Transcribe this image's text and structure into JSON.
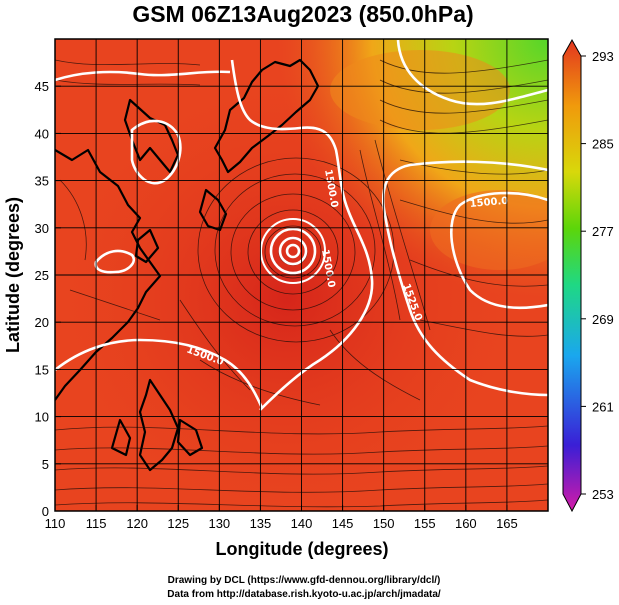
{
  "title": "GSM 06Z13Aug2023 (850.0hPa)",
  "xlabel": "Longitude (degrees)",
  "ylabel": "Latitude  (degrees)",
  "credits": [
    "Drawing by DCL (https://www.gfd-dennou.org/library/dcl/)",
    "Data from http://database.rish.kyoto-u.ac.jp/arch/jmadata/"
  ],
  "chart_data": {
    "type": "heatmap",
    "title": "GSM 06Z13Aug2023 (850.0hPa)",
    "xlabel": "Longitude (degrees)",
    "ylabel": "Latitude  (degrees)",
    "xlim": [
      110,
      170
    ],
    "ylim": [
      0,
      50
    ],
    "x_ticks": [
      110,
      115,
      120,
      125,
      130,
      135,
      140,
      145,
      150,
      155,
      160,
      165
    ],
    "y_ticks": [
      0,
      5,
      10,
      15,
      20,
      25,
      30,
      35,
      40,
      45
    ],
    "grid": true,
    "colorbar": {
      "range": [
        253,
        293
      ],
      "ticks": [
        293,
        285,
        277,
        269,
        261,
        253
      ],
      "colors": [
        "#d41ba8",
        "#3a1fd6",
        "#1aa7ee",
        "#1fd884",
        "#5cd60a",
        "#d8d80b",
        "#f09a0c",
        "#e3361f"
      ]
    },
    "contour_labels": [
      "1500.0",
      "1500.0",
      "1500.0",
      "1500.0",
      "1525.0"
    ],
    "cyclone_center": {
      "lon": 139,
      "lat": 29.8
    },
    "streamlines": true,
    "land_outline": true
  },
  "colors": {
    "field_warm": "#e8401f",
    "field_hot": "#d92a17",
    "field_orange": "#ef6a1e",
    "field_yellow": "#c8d40e",
    "field_green": "#58d620",
    "contour": "#ffffff",
    "grid": "#000000"
  }
}
